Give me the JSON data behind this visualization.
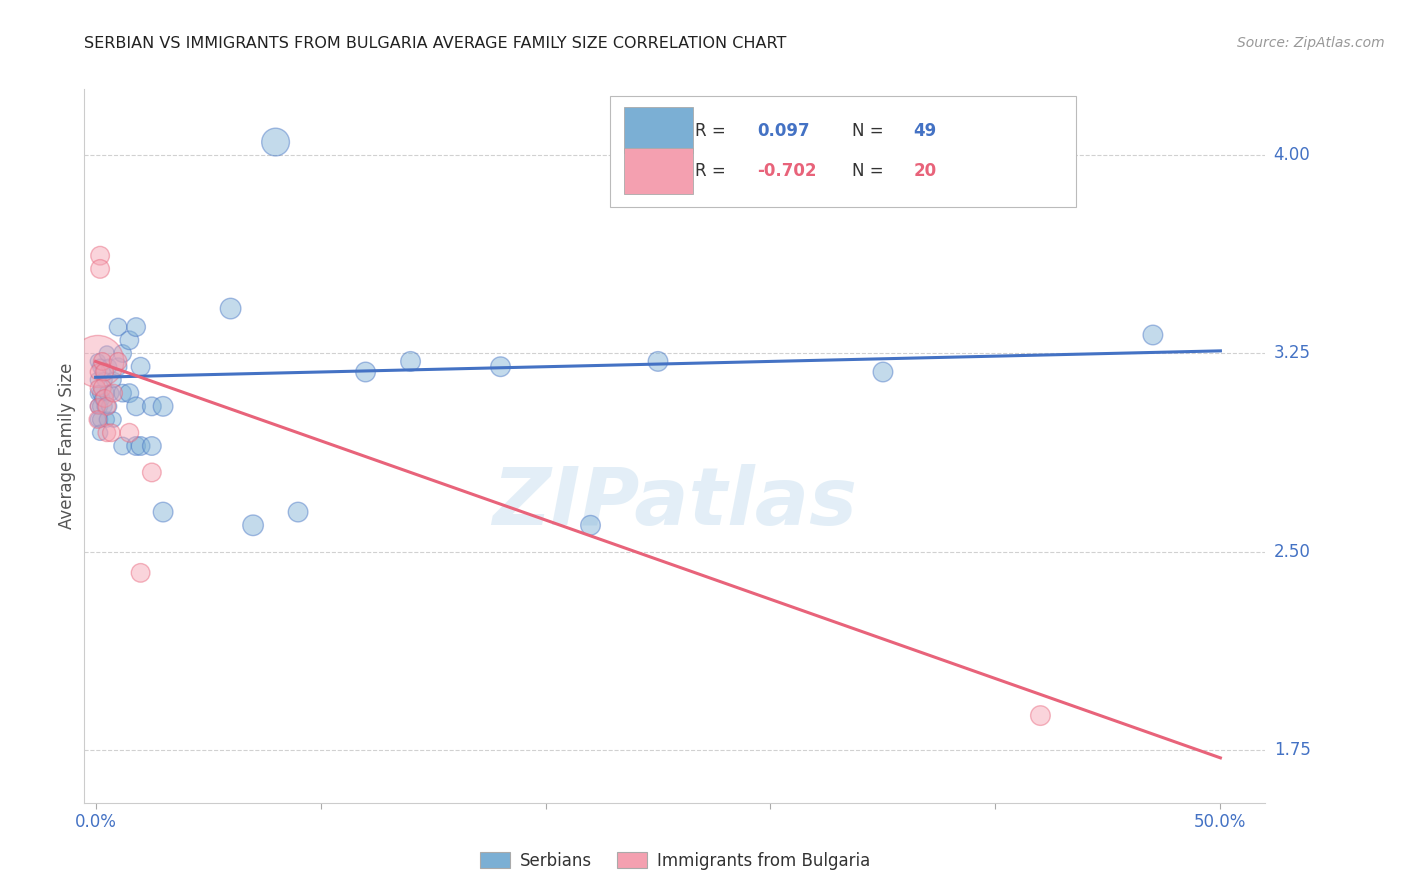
{
  "title": "SERBIAN VS IMMIGRANTS FROM BULGARIA AVERAGE FAMILY SIZE CORRELATION CHART",
  "source": "Source: ZipAtlas.com",
  "ylabel": "Average Family Size",
  "watermark": "ZIPatlas",
  "legend_label_blue": "Serbians",
  "legend_label_pink": "Immigrants from Bulgaria",
  "ylim": [
    1.55,
    4.25
  ],
  "xlim": [
    -0.005,
    0.52
  ],
  "yticks": [
    1.75,
    2.5,
    3.25,
    4.0
  ],
  "xticks": [
    0.0,
    0.1,
    0.2,
    0.3,
    0.4,
    0.5
  ],
  "xtick_labels": [
    "0.0%",
    "",
    "",
    "",
    "",
    "50.0%"
  ],
  "title_color": "#222222",
  "blue_color": "#7bafd4",
  "pink_color": "#f4a0b0",
  "blue_line_color": "#4472c4",
  "pink_line_color": "#e8637a",
  "tick_label_color": "#4472c4",
  "grid_color": "#cccccc",
  "blue_scatter": [
    [
      0.001,
      3.22
    ],
    [
      0.001,
      3.15
    ],
    [
      0.001,
      3.1
    ],
    [
      0.001,
      3.05
    ],
    [
      0.001,
      3.0
    ],
    [
      0.002,
      3.2
    ],
    [
      0.002,
      3.1
    ],
    [
      0.002,
      3.05
    ],
    [
      0.002,
      3.0
    ],
    [
      0.002,
      2.95
    ],
    [
      0.003,
      3.18
    ],
    [
      0.003,
      3.08
    ],
    [
      0.004,
      3.15
    ],
    [
      0.004,
      3.05
    ],
    [
      0.005,
      3.25
    ],
    [
      0.005,
      3.1
    ],
    [
      0.005,
      3.0
    ],
    [
      0.006,
      3.2
    ],
    [
      0.006,
      3.05
    ],
    [
      0.007,
      3.1
    ],
    [
      0.008,
      3.15
    ],
    [
      0.008,
      3.0
    ],
    [
      0.01,
      3.35
    ],
    [
      0.01,
      3.2
    ],
    [
      0.012,
      3.25
    ],
    [
      0.012,
      3.1
    ],
    [
      0.012,
      2.9
    ],
    [
      0.015,
      3.3
    ],
    [
      0.015,
      3.1
    ],
    [
      0.018,
      3.35
    ],
    [
      0.018,
      3.05
    ],
    [
      0.018,
      2.9
    ],
    [
      0.02,
      3.2
    ],
    [
      0.02,
      2.9
    ],
    [
      0.025,
      3.05
    ],
    [
      0.025,
      2.9
    ],
    [
      0.03,
      3.05
    ],
    [
      0.03,
      2.65
    ],
    [
      0.06,
      3.42
    ],
    [
      0.07,
      2.6
    ],
    [
      0.08,
      4.05
    ],
    [
      0.09,
      2.65
    ],
    [
      0.12,
      3.18
    ],
    [
      0.14,
      3.22
    ],
    [
      0.18,
      3.2
    ],
    [
      0.22,
      2.6
    ],
    [
      0.25,
      3.22
    ],
    [
      0.35,
      3.18
    ],
    [
      0.47,
      3.32
    ]
  ],
  "blue_sizes": [
    120,
    120,
    120,
    120,
    120,
    120,
    120,
    120,
    120,
    120,
    120,
    120,
    120,
    120,
    120,
    120,
    120,
    120,
    120,
    120,
    120,
    120,
    160,
    160,
    160,
    160,
    160,
    180,
    180,
    180,
    180,
    180,
    180,
    180,
    180,
    180,
    200,
    200,
    220,
    220,
    400,
    200,
    200,
    200,
    200,
    200,
    200,
    200,
    200
  ],
  "pink_scatter": [
    [
      0.001,
      3.22
    ],
    [
      0.001,
      3.18
    ],
    [
      0.001,
      3.12
    ],
    [
      0.001,
      3.05
    ],
    [
      0.002,
      3.62
    ],
    [
      0.002,
      3.57
    ],
    [
      0.003,
      3.22
    ],
    [
      0.003,
      3.12
    ],
    [
      0.004,
      3.18
    ],
    [
      0.004,
      3.08
    ],
    [
      0.005,
      3.05
    ],
    [
      0.005,
      2.95
    ],
    [
      0.007,
      2.95
    ],
    [
      0.008,
      3.1
    ],
    [
      0.01,
      3.22
    ],
    [
      0.015,
      2.95
    ],
    [
      0.02,
      2.42
    ],
    [
      0.025,
      2.8
    ],
    [
      0.42,
      1.88
    ],
    [
      0.001,
      3.0
    ]
  ],
  "pink_sizes": [
    1400,
    120,
    120,
    120,
    180,
    180,
    160,
    160,
    160,
    160,
    160,
    160,
    160,
    160,
    160,
    180,
    180,
    180,
    200,
    160
  ],
  "blue_line_x": [
    0.0,
    0.5
  ],
  "blue_line_y": [
    3.16,
    3.26
  ],
  "pink_line_x": [
    0.0,
    0.5
  ],
  "pink_line_y": [
    3.22,
    1.72
  ]
}
